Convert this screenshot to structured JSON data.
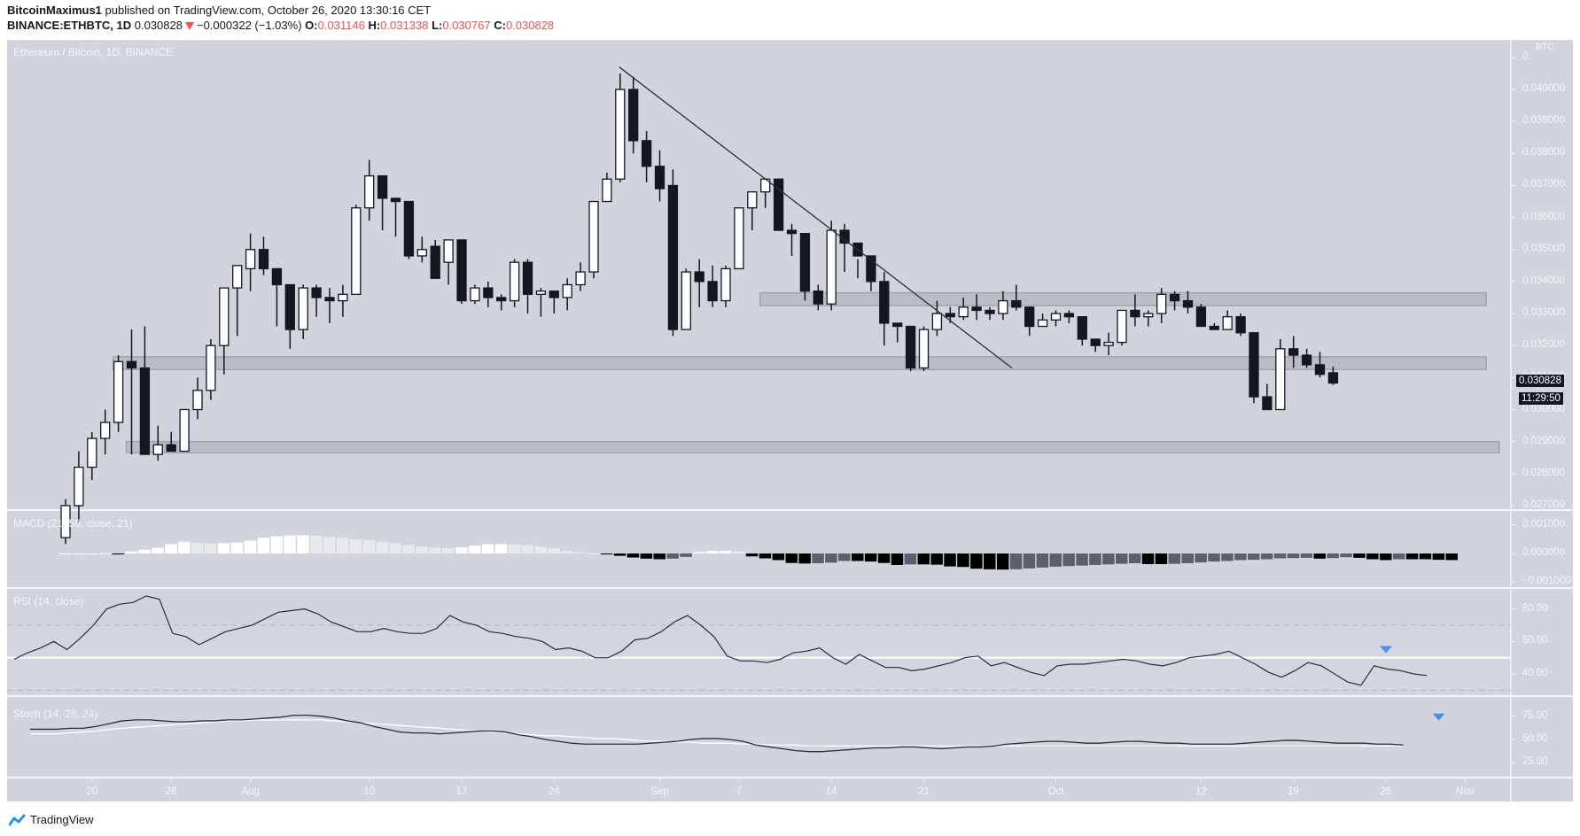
{
  "header": {
    "publisher": "BitcoinMaximus1",
    "published_text": "published on TradingView.com, October 26, 2020 13:30:16 CET",
    "symbol": "BINANCE:ETHBTC, 1D",
    "last": "0.030828",
    "change": "−0.000322 (−1.03%)",
    "o_label": "O:",
    "o": "0.031146",
    "h_label": "H:",
    "h": "0.031338",
    "l_label": "L:",
    "l": "0.030767",
    "c_label": "C:",
    "c": "0.030828"
  },
  "main_pane": {
    "title": "Ethereum / Bitcoin, 1D, BINANCE",
    "currency": "BTC",
    "last_price_tag": "0.030828",
    "countdown": "11:29:50"
  },
  "indicators": {
    "macd_label": "MACD (21, 50, close, 21)",
    "rsi_label": "RSI (14, close)",
    "stoch_label": "Stoch (14, 28, 24)"
  },
  "footer": {
    "brand": "TradingView"
  },
  "colors": {
    "background": "#d1d4dc",
    "bull": "#ffffff",
    "bear": "#131722",
    "zone": "#b6b9c1",
    "marker": "#4d8ef0",
    "grid_line": "#f4f5f8"
  },
  "chart_data": {
    "type": "candlestick",
    "title": "Ethereum / Bitcoin, 1D, BINANCE",
    "ylabel": "BTC",
    "ylim": [
      0.0265,
      0.0412
    ],
    "price_ticks": [
      "0.040000",
      "0.039000",
      "0.038000",
      "0.037000",
      "0.036000",
      "0.035000",
      "0.034000",
      "0.033000",
      "0.032000",
      "0.031000",
      "0.030000",
      "0.029000",
      "0.028000",
      "0.027000"
    ],
    "x_ticks": [
      {
        "label": "20",
        "i": 2
      },
      {
        "label": "26",
        "i": 8
      },
      {
        "label": "Aug",
        "i": 14
      },
      {
        "label": "10",
        "i": 23
      },
      {
        "label": "17",
        "i": 30
      },
      {
        "label": "24",
        "i": 37
      },
      {
        "label": "Sep",
        "i": 45
      },
      {
        "label": "7",
        "i": 51
      },
      {
        "label": "14",
        "i": 58
      },
      {
        "label": "21",
        "i": 65
      },
      {
        "label": "Oct",
        "i": 75
      },
      {
        "label": "12",
        "i": 86
      },
      {
        "label": "19",
        "i": 93
      },
      {
        "label": "26",
        "i": 100
      },
      {
        "label": "Nov",
        "i": 106
      }
    ],
    "candles": [
      [
        0.026,
        0.0272,
        0.0258,
        0.027
      ],
      [
        0.027,
        0.0287,
        0.0265,
        0.0282
      ],
      [
        0.0282,
        0.0293,
        0.0278,
        0.0291
      ],
      [
        0.0291,
        0.03,
        0.0286,
        0.0296
      ],
      [
        0.0296,
        0.0317,
        0.0293,
        0.0315
      ],
      [
        0.0315,
        0.0325,
        0.0286,
        0.0313
      ],
      [
        0.0313,
        0.0326,
        0.0286,
        0.0286
      ],
      [
        0.0286,
        0.0295,
        0.0284,
        0.0289
      ],
      [
        0.0289,
        0.0293,
        0.0287,
        0.0287
      ],
      [
        0.0287,
        0.0296,
        0.0287,
        0.03
      ],
      [
        0.03,
        0.031,
        0.0297,
        0.0306
      ],
      [
        0.0306,
        0.0322,
        0.0303,
        0.032
      ],
      [
        0.032,
        0.0337,
        0.0311,
        0.0338
      ],
      [
        0.0338,
        0.0344,
        0.0323,
        0.0345
      ],
      [
        0.0344,
        0.0355,
        0.0337,
        0.035
      ],
      [
        0.035,
        0.0354,
        0.0342,
        0.0344
      ],
      [
        0.0344,
        0.0344,
        0.0326,
        0.0339
      ],
      [
        0.0339,
        0.0337,
        0.0319,
        0.0325
      ],
      [
        0.0325,
        0.0339,
        0.0322,
        0.0338
      ],
      [
        0.0338,
        0.0339,
        0.0329,
        0.0335
      ],
      [
        0.0335,
        0.0338,
        0.0327,
        0.0334
      ],
      [
        0.0334,
        0.0339,
        0.0329,
        0.0336
      ],
      [
        0.0336,
        0.0364,
        0.0336,
        0.0363
      ],
      [
        0.0363,
        0.0378,
        0.0359,
        0.0373
      ],
      [
        0.0373,
        0.0369,
        0.0356,
        0.0366
      ],
      [
        0.0366,
        0.0366,
        0.0354,
        0.0365
      ],
      [
        0.0365,
        0.0365,
        0.0347,
        0.0348
      ],
      [
        0.0348,
        0.0354,
        0.0346,
        0.035
      ],
      [
        0.0351,
        0.0353,
        0.0341,
        0.0341
      ],
      [
        0.0346,
        0.0353,
        0.0339,
        0.0353
      ],
      [
        0.0353,
        0.0353,
        0.0333,
        0.0334
      ],
      [
        0.0334,
        0.0339,
        0.0333,
        0.0338
      ],
      [
        0.0338,
        0.034,
        0.0332,
        0.0335
      ],
      [
        0.0335,
        0.0336,
        0.0331,
        0.0334
      ],
      [
        0.0334,
        0.0347,
        0.0332,
        0.0346
      ],
      [
        0.0346,
        0.0347,
        0.033,
        0.0336
      ],
      [
        0.0336,
        0.0338,
        0.0329,
        0.0337
      ],
      [
        0.0337,
        0.0337,
        0.033,
        0.0335
      ],
      [
        0.0335,
        0.0341,
        0.0331,
        0.0339
      ],
      [
        0.0339,
        0.0346,
        0.0337,
        0.0343
      ],
      [
        0.0343,
        0.0361,
        0.0341,
        0.0365
      ],
      [
        0.0365,
        0.0374,
        0.0367,
        0.0372
      ],
      [
        0.0372,
        0.0405,
        0.0371,
        0.04
      ],
      [
        0.04,
        0.0404,
        0.038,
        0.0384
      ],
      [
        0.0384,
        0.0387,
        0.0371,
        0.0376
      ],
      [
        0.0376,
        0.0381,
        0.0365,
        0.0369
      ],
      [
        0.037,
        0.0375,
        0.0323,
        0.0325
      ],
      [
        0.0325,
        0.0344,
        0.0326,
        0.0343
      ],
      [
        0.0343,
        0.0347,
        0.0332,
        0.034
      ],
      [
        0.034,
        0.0345,
        0.0332,
        0.0334
      ],
      [
        0.0334,
        0.0345,
        0.0332,
        0.0344
      ],
      [
        0.0344,
        0.0361,
        0.0344,
        0.0363
      ],
      [
        0.0363,
        0.0367,
        0.0356,
        0.0368
      ],
      [
        0.0368,
        0.0372,
        0.0363,
        0.0372
      ],
      [
        0.0372,
        0.0372,
        0.0356,
        0.0356
      ],
      [
        0.0356,
        0.0358,
        0.0348,
        0.0355
      ],
      [
        0.0355,
        0.0354,
        0.0334,
        0.0337
      ],
      [
        0.0337,
        0.0339,
        0.0331,
        0.0333
      ],
      [
        0.0333,
        0.0359,
        0.0331,
        0.0356
      ],
      [
        0.0356,
        0.0358,
        0.0343,
        0.0352
      ],
      [
        0.0352,
        0.0347,
        0.0341,
        0.0348
      ],
      [
        0.0348,
        0.0348,
        0.0337,
        0.034
      ],
      [
        0.034,
        0.0343,
        0.032,
        0.0327
      ],
      [
        0.0327,
        0.0326,
        0.0321,
        0.0326
      ],
      [
        0.0326,
        0.0324,
        0.0312,
        0.0313
      ],
      [
        0.0313,
        0.0326,
        0.0312,
        0.0325
      ],
      [
        0.0325,
        0.0334,
        0.0323,
        0.033
      ],
      [
        0.033,
        0.0332,
        0.0327,
        0.0329
      ],
      [
        0.0329,
        0.0335,
        0.0328,
        0.0332
      ],
      [
        0.0332,
        0.0336,
        0.0328,
        0.0331
      ],
      [
        0.0331,
        0.0332,
        0.0328,
        0.033
      ],
      [
        0.033,
        0.0337,
        0.0328,
        0.0334
      ],
      [
        0.0334,
        0.0339,
        0.0331,
        0.0332
      ],
      [
        0.0332,
        0.0332,
        0.0323,
        0.0326
      ],
      [
        0.0326,
        0.033,
        0.0326,
        0.0328
      ],
      [
        0.0328,
        0.0331,
        0.0326,
        0.033
      ],
      [
        0.033,
        0.0331,
        0.0327,
        0.0329
      ],
      [
        0.0329,
        0.0329,
        0.032,
        0.0322
      ],
      [
        0.0322,
        0.032,
        0.0318,
        0.032
      ],
      [
        0.032,
        0.0324,
        0.0317,
        0.0321
      ],
      [
        0.0321,
        0.0331,
        0.032,
        0.0331
      ],
      [
        0.0331,
        0.0336,
        0.0326,
        0.0329
      ],
      [
        0.0329,
        0.0331,
        0.0326,
        0.033
      ],
      [
        0.033,
        0.0338,
        0.0327,
        0.0336
      ],
      [
        0.0336,
        0.0337,
        0.0331,
        0.0334
      ],
      [
        0.0334,
        0.0337,
        0.033,
        0.0332
      ],
      [
        0.0332,
        0.0333,
        0.0326,
        0.0326
      ],
      [
        0.0326,
        0.0327,
        0.0325,
        0.0325
      ],
      [
        0.0325,
        0.0331,
        0.0325,
        0.0329
      ],
      [
        0.0329,
        0.033,
        0.0323,
        0.0324
      ],
      [
        0.0324,
        0.0324,
        0.0302,
        0.0304
      ],
      [
        0.0304,
        0.0308,
        0.0301,
        0.03
      ],
      [
        0.03,
        0.0322,
        0.0303,
        0.0319
      ],
      [
        0.0319,
        0.0323,
        0.0313,
        0.0317
      ],
      [
        0.0317,
        0.0319,
        0.0313,
        0.0314
      ],
      [
        0.0314,
        0.0318,
        0.031,
        0.0311
      ],
      [
        0.03115,
        0.03134,
        0.03077,
        0.03083
      ]
    ],
    "trendline": {
      "from": {
        "i": 42,
        "price": 0.0407
      },
      "to": {
        "i": 71,
        "price": 0.0313
      }
    },
    "zones": [
      {
        "from_i": 53,
        "to_i": 108,
        "top": 0.03365,
        "bottom": 0.03325
      },
      {
        "from_i": 4,
        "to_i": 108,
        "top": 0.03165,
        "bottom": 0.03125
      },
      {
        "from_i": 5,
        "to_i": 109,
        "top": 0.029,
        "bottom": 0.02865
      }
    ],
    "macd": {
      "ticks": [
        "0.001000",
        "0.000000",
        "−0.001000"
      ],
      "ylim": [
        -0.00105,
        0.00105
      ],
      "histogram": [
        0.0,
        0.0,
        0.0,
        1e-05,
        -1e-05,
        7e-05,
        0.00013,
        0.0002,
        0.00033,
        0.00041,
        0.00037,
        0.00034,
        0.00036,
        0.00038,
        0.00045,
        0.00055,
        0.0006,
        0.00063,
        0.00064,
        0.00062,
        0.00058,
        0.00055,
        0.0005,
        0.00046,
        0.00041,
        0.00036,
        0.0003,
        0.00025,
        0.0002,
        0.00018,
        0.00022,
        0.00027,
        0.00032,
        0.00033,
        0.00032,
        0.00029,
        0.00024,
        0.00018,
        0.0001,
        4e-05,
        0.0,
        -3e-05,
        -8e-05,
        -0.00014,
        -0.00018,
        -0.0002,
        -0.00018,
        -0.00012,
        5e-05,
        9e-05,
        9e-05,
        7e-05,
        -0.0001,
        -0.00017,
        -0.00023,
        -0.00033,
        -0.00035,
        -0.00034,
        -0.00032,
        -0.00026,
        -0.00026,
        -0.00028,
        -0.00033,
        -0.0004,
        -0.00038,
        -0.00038,
        -0.00039,
        -0.00045,
        -0.00047,
        -0.00053,
        -0.00055,
        -0.00056,
        -0.00055,
        -0.00052,
        -0.00049,
        -0.00046,
        -0.00044,
        -0.00042,
        -0.0004,
        -0.00038,
        -0.00036,
        -0.00034,
        -0.00037,
        -0.00037,
        -0.00036,
        -0.00034,
        -0.00031,
        -0.00028,
        -0.00026,
        -0.00023,
        -0.00022,
        -0.0002,
        -0.00017,
        -0.00016,
        -0.00015,
        -0.00018,
        -0.00016,
        -0.00013,
        -0.00015,
        -0.0002,
        -0.00023,
        -0.0002,
        -0.0002,
        -0.0002,
        -0.00022,
        -0.00023
      ]
    },
    "rsi": {
      "ticks": [
        "80.00",
        "60.00",
        "40.00"
      ],
      "ylim": [
        28,
        88
      ],
      "bands": [
        70,
        30
      ],
      "midline": 50,
      "values": [
        49,
        53,
        56,
        60,
        55,
        62,
        70,
        80,
        83,
        84,
        88,
        86,
        65,
        63,
        58,
        62,
        66,
        68,
        70,
        74,
        78,
        79,
        80,
        77,
        72,
        69,
        66,
        66,
        68,
        66,
        65,
        65,
        68,
        76,
        72,
        70,
        66,
        65,
        63,
        62,
        60,
        55,
        56,
        54,
        50,
        50,
        54,
        61,
        62,
        66,
        72,
        76,
        70,
        63,
        51,
        48,
        48,
        47,
        49,
        53,
        54,
        56,
        50,
        46,
        52,
        48,
        44,
        44,
        42,
        43,
        45,
        47,
        50,
        51,
        45,
        47,
        44,
        41,
        39,
        45,
        46,
        46,
        47,
        48,
        49,
        48,
        46,
        45,
        47,
        50,
        51,
        52,
        54,
        50,
        46,
        41,
        38,
        42,
        47,
        45,
        40,
        35,
        33,
        45,
        43,
        42,
        40,
        39
      ]
    },
    "stoch": {
      "ticks": [
        "75.00",
        "50.00",
        "25.00"
      ],
      "ylim": [
        12,
        88
      ],
      "k": [
        61,
        61,
        61,
        62,
        62,
        64,
        67,
        70,
        71,
        71,
        70,
        69,
        69,
        70,
        70,
        71,
        71,
        72,
        73,
        74,
        76,
        76,
        75,
        73,
        70,
        68,
        64,
        61,
        58,
        57,
        57,
        56,
        57,
        58,
        59,
        59,
        58,
        55,
        53,
        50,
        48,
        46,
        45,
        45,
        45,
        45,
        45,
        46,
        47,
        48,
        50,
        51,
        51,
        50,
        48,
        44,
        42,
        40,
        38,
        37,
        37,
        38,
        39,
        40,
        41,
        41,
        42,
        42,
        41,
        40,
        41,
        42,
        42,
        43,
        45,
        46,
        47,
        48,
        48,
        47,
        46,
        46,
        47,
        48,
        48,
        47,
        46,
        46,
        45,
        45,
        45,
        45,
        46,
        47,
        48,
        49,
        49,
        48,
        47,
        46,
        46,
        46,
        45,
        45,
        44
      ],
      "d": [
        56,
        56,
        56,
        57,
        58,
        59,
        61,
        62,
        63,
        64,
        65,
        66,
        67,
        68,
        69,
        70,
        70,
        71,
        71,
        71,
        71,
        71,
        71,
        70,
        69,
        68,
        67,
        66,
        65,
        64,
        63,
        62,
        61,
        60,
        59,
        58,
        57,
        56,
        55,
        54,
        54,
        53,
        52,
        51,
        51,
        50,
        49,
        48,
        48,
        47,
        47,
        46,
        46,
        46,
        45,
        45,
        44,
        44,
        44,
        43,
        43,
        43,
        43,
        43,
        43,
        43,
        43,
        43,
        43,
        43,
        43,
        43,
        43,
        43,
        43,
        43,
        43,
        43,
        43,
        43,
        43,
        43,
        43,
        43,
        43,
        43,
        43,
        43,
        43,
        43,
        43,
        43,
        43,
        43,
        43,
        43,
        43,
        43,
        43,
        43,
        43,
        43,
        43,
        43,
        43
      ]
    },
    "markers": [
      {
        "pane": "rsi",
        "i": 100,
        "shape": "triangle-down"
      },
      {
        "pane": "stoch",
        "i": 104,
        "shape": "triangle-down"
      }
    ]
  }
}
